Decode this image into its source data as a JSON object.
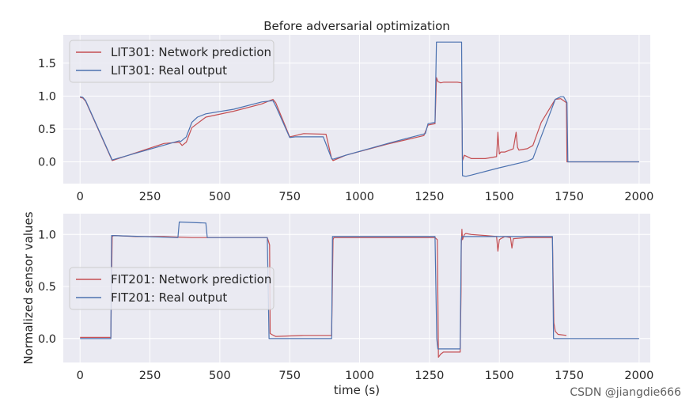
{
  "chart_data": [
    {
      "type": "line",
      "title": "Before adversarial optimization",
      "xlabel": "",
      "ylabel": "",
      "xlim": [
        -60,
        2040
      ],
      "ylim": [
        -0.33,
        1.93
      ],
      "xticks": [
        0,
        250,
        500,
        750,
        1000,
        1250,
        1500,
        1750,
        2000
      ],
      "yticks": [
        0.0,
        0.5,
        1.0,
        1.5
      ],
      "ytick_labels": [
        "0.0",
        "0.5",
        "1.0",
        "1.5"
      ],
      "grid": true,
      "legend_position": "upper-left",
      "colors": {
        "prediction": "#c44e52",
        "real": "#4c72b0"
      },
      "series": [
        {
          "name": "LIT301: Network prediction",
          "x": [
            0,
            10,
            20,
            115,
            300,
            355,
            365,
            380,
            400,
            450,
            550,
            650,
            690,
            700,
            750,
            770,
            800,
            880,
            900,
            905,
            950,
            1100,
            1230,
            1245,
            1270,
            1275,
            1280,
            1290,
            1300,
            1350,
            1365,
            1368,
            1375,
            1400,
            1450,
            1490,
            1495,
            1500,
            1505,
            1520,
            1550,
            1560,
            1565,
            1570,
            1600,
            1620,
            1650,
            1700,
            1720,
            1740,
            1742,
            1750,
            2000
          ],
          "y": [
            0.98,
            0.97,
            0.92,
            0.02,
            0.28,
            0.3,
            0.25,
            0.3,
            0.52,
            0.68,
            0.77,
            0.88,
            0.95,
            0.9,
            0.38,
            0.4,
            0.43,
            0.42,
            0.05,
            0.02,
            0.1,
            0.27,
            0.4,
            0.56,
            0.58,
            1.28,
            1.22,
            1.2,
            1.21,
            1.21,
            1.2,
            0.02,
            0.1,
            0.05,
            0.05,
            0.08,
            0.45,
            0.12,
            0.15,
            0.15,
            0.2,
            0.45,
            0.22,
            0.18,
            0.2,
            0.25,
            0.6,
            0.95,
            0.96,
            0.9,
            0.0,
            0.0,
            0.0
          ]
        },
        {
          "name": "LIT301: Real output",
          "x": [
            0,
            10,
            20,
            115,
            355,
            360,
            380,
            400,
            420,
            450,
            550,
            650,
            690,
            700,
            750,
            770,
            790,
            870,
            900,
            905,
            950,
            1100,
            1235,
            1245,
            1270,
            1275,
            1280,
            1365,
            1368,
            1380,
            1400,
            1500,
            1600,
            1610,
            1620,
            1700,
            1720,
            1730,
            1742,
            1745,
            1760,
            2000
          ],
          "y": [
            0.99,
            0.98,
            0.93,
            0.03,
            0.32,
            0.31,
            0.38,
            0.6,
            0.68,
            0.73,
            0.8,
            0.91,
            0.93,
            0.85,
            0.37,
            0.38,
            0.38,
            0.38,
            0.05,
            0.04,
            0.1,
            0.28,
            0.43,
            0.58,
            0.6,
            1.82,
            1.82,
            1.82,
            -0.21,
            -0.22,
            -0.2,
            -0.09,
            0.01,
            0.03,
            0.05,
            0.95,
            0.99,
            0.99,
            0.9,
            0.0,
            0.0,
            0.0
          ]
        }
      ]
    },
    {
      "type": "line",
      "title": "",
      "xlabel": "time (s)",
      "ylabel": "Normalized sensor values",
      "xlim": [
        -60,
        2040
      ],
      "ylim": [
        -0.23,
        1.2
      ],
      "xticks": [
        0,
        250,
        500,
        750,
        1000,
        1250,
        1500,
        1750,
        2000
      ],
      "yticks": [
        0.0,
        0.5,
        1.0
      ],
      "ytick_labels": [
        "0.0",
        "0.5",
        "1.0"
      ],
      "grid": true,
      "legend_position": "center-left",
      "colors": {
        "prediction": "#c44e52",
        "real": "#4c72b0"
      },
      "series": [
        {
          "name": "FIT201: Network prediction",
          "x": [
            0,
            110,
            115,
            120,
            200,
            300,
            400,
            500,
            600,
            670,
            678,
            680,
            685,
            700,
            800,
            900,
            905,
            908,
            930,
            1000,
            1100,
            1200,
            1270,
            1278,
            1282,
            1290,
            1300,
            1360,
            1363,
            1364,
            1366,
            1368,
            1375,
            1380,
            1400,
            1450,
            1490,
            1495,
            1500,
            1505,
            1520,
            1540,
            1545,
            1550,
            1600,
            1650,
            1690,
            1695,
            1700,
            1710,
            1740
          ],
          "y": [
            0.01,
            0.01,
            0.98,
            0.99,
            0.98,
            0.98,
            0.97,
            0.97,
            0.97,
            0.97,
            0.9,
            0.05,
            0.04,
            0.02,
            0.03,
            0.03,
            0.95,
            0.97,
            0.97,
            0.97,
            0.97,
            0.97,
            0.97,
            0.95,
            -0.18,
            -0.15,
            -0.13,
            -0.13,
            0.45,
            0.9,
            1.05,
            0.95,
            1.0,
            1.01,
            1.0,
            0.99,
            0.98,
            0.84,
            0.95,
            0.96,
            0.98,
            0.97,
            0.87,
            0.96,
            0.97,
            0.97,
            0.97,
            0.15,
            0.07,
            0.04,
            0.03
          ]
        },
        {
          "name": "FIT201: Real output",
          "x": [
            0,
            110,
            113,
            350,
            355,
            450,
            455,
            670,
            676,
            680,
            900,
            903,
            1270,
            1276,
            1280,
            1360,
            1362,
            1364,
            1366,
            1370,
            1690,
            1694,
            2000
          ],
          "y": [
            0.0,
            0.0,
            0.99,
            0.97,
            1.12,
            1.11,
            0.97,
            0.97,
            0.0,
            0.0,
            0.0,
            0.98,
            0.98,
            0.0,
            -0.1,
            -0.1,
            0.45,
            0.95,
            0.98,
            0.98,
            0.98,
            0.0,
            0.0
          ]
        }
      ]
    }
  ],
  "watermark": "CSDN @jiangdie666"
}
